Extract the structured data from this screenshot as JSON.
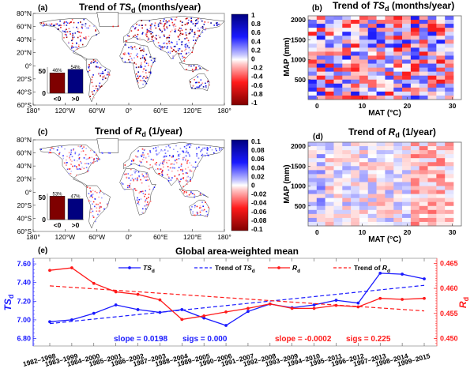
{
  "chart_data": [
    {
      "id": "a",
      "type": "heatmap",
      "panel_label": "(a)",
      "title": "Trend of TSd (months/year)",
      "title_main": "Trend of ",
      "title_var": "TS",
      "title_sub": "d",
      "title_unit": " (months/year)",
      "xticks": [
        "180°",
        "120°W",
        "60°W",
        "0°",
        "60°E",
        "120°E",
        "180°"
      ],
      "yticks": [
        "80°N",
        "60°N",
        "40°N",
        "20°N",
        "0°",
        "20°S",
        "40°S",
        "60°S"
      ],
      "colorbar": {
        "ticks": [
          "1",
          "0.8",
          "0.6",
          "0.4",
          "0.2",
          "0",
          "-0.2",
          "-0.4",
          "-0.6",
          "-0.8",
          "-1"
        ],
        "range": [
          -1,
          1
        ]
      },
      "inset": {
        "categories": [
          "<0",
          ">0"
        ],
        "values": [
          46,
          54
        ],
        "labels": [
          "46%",
          "54%"
        ],
        "ytick": "50",
        "ytick0": "0",
        "colors": [
          "#7f0000",
          "#00007f"
        ]
      }
    },
    {
      "id": "b",
      "type": "heatmap",
      "panel_label": "(b)",
      "title_main": "Trend of ",
      "title_var": "TS",
      "title_sub": "d",
      "title_unit": " (months/year)",
      "xlabel": "MAT (°C)",
      "ylabel": "MAP (mm)",
      "xticks": [
        "0",
        "10",
        "20",
        "30"
      ],
      "yticks": [
        "2000",
        "1500",
        "1000",
        "500"
      ],
      "xlim": [
        -2,
        32
      ],
      "ylim": [
        0,
        2100
      ],
      "color_range": [
        -1,
        1
      ]
    },
    {
      "id": "c",
      "type": "heatmap",
      "panel_label": "(c)",
      "title_main": "Trend of ",
      "title_var": "R",
      "title_sub": "d",
      "title_unit": " (1/year)",
      "xticks": [
        "180°",
        "120°W",
        "60°W",
        "0°",
        "60°E",
        "120°E",
        "180°"
      ],
      "yticks": [
        "80°N",
        "60°N",
        "40°N",
        "20°N",
        "0°",
        "20°S",
        "40°S",
        "60°S"
      ],
      "colorbar": {
        "ticks": [
          "0.1",
          "0.08",
          "0.06",
          "0.04",
          "0.02",
          "0",
          "-0.02",
          "-0.04",
          "-0.06",
          "-0.08",
          "-0.1"
        ],
        "range": [
          -0.1,
          0.1
        ]
      },
      "inset": {
        "categories": [
          "<0",
          ">0"
        ],
        "values": [
          53,
          47
        ],
        "labels": [
          "53%",
          "47%"
        ],
        "ytick": "50",
        "ytick0": "0",
        "colors": [
          "#7f0000",
          "#00007f"
        ]
      }
    },
    {
      "id": "d",
      "type": "heatmap",
      "panel_label": "(d)",
      "title_main": "Trend of ",
      "title_var": "R",
      "title_sub": "d",
      "title_unit": " (1/year)",
      "xlabel": "MAT (°C)",
      "ylabel": "MAP (mm)",
      "xticks": [
        "0",
        "10",
        "20",
        "30"
      ],
      "yticks": [
        "2000",
        "1500",
        "1000",
        "500"
      ],
      "xlim": [
        -2,
        32
      ],
      "ylim": [
        0,
        2100
      ],
      "color_range": [
        -0.1,
        0.1
      ]
    },
    {
      "id": "e",
      "type": "line",
      "panel_label": "(e)",
      "title": "Global area-weighted mean",
      "categories": [
        "1982–1998",
        "1983–1999",
        "1984–2000",
        "1985–2001",
        "1986–2002",
        "1987–2003",
        "1988–2004",
        "1989–2005",
        "1990–2006",
        "1991–2007",
        "1992–2008",
        "1993–2009",
        "1994–2010",
        "1995–2011",
        "1996–2012",
        "1997–2013",
        "1998–2014",
        "1999–2015"
      ],
      "y_left": {
        "label_var": "TS",
        "label_sub": "d",
        "ticks": [
          "7.60",
          "7.40",
          "7.20",
          "7.00",
          "6.80"
        ],
        "ylim": [
          6.72,
          7.66
        ],
        "color": "#1a1aff"
      },
      "y_right": {
        "label_var": "R",
        "label_sub": "d",
        "ticks": [
          "0.465",
          "0.460",
          "0.455",
          "0.450"
        ],
        "ylim": [
          0.4485,
          0.466
        ],
        "color": "#ff1a1a"
      },
      "series": [
        {
          "name": "TSd",
          "axis": "left",
          "style": "solid-marker",
          "color": "#1a1aff",
          "values": [
            6.98,
            7.0,
            7.07,
            7.16,
            7.11,
            7.08,
            7.11,
            7.02,
            6.94,
            7.09,
            7.17,
            7.13,
            7.16,
            7.21,
            7.18,
            7.5,
            7.49,
            7.44
          ]
        },
        {
          "name": "Trend of TSd",
          "axis": "left",
          "style": "dashed",
          "color": "#1a1aff",
          "start": 6.96,
          "end": 7.37
        },
        {
          "name": "Rd",
          "axis": "right",
          "style": "solid-marker",
          "color": "#ff1a1a",
          "values": [
            0.4636,
            0.4641,
            0.461,
            0.4593,
            0.4588,
            0.4577,
            0.4538,
            0.4545,
            0.4553,
            0.456,
            0.4569,
            0.456,
            0.456,
            0.4566,
            0.4563,
            0.458,
            0.4578,
            0.458
          ]
        },
        {
          "name": "Trend of Rd",
          "axis": "right",
          "style": "dashed",
          "color": "#ff1a1a",
          "start": 0.4605,
          "end": 0.4555
        }
      ],
      "legend": [
        {
          "var": "TS",
          "sub": "d",
          "prefix": "",
          "color": "#1a1aff",
          "style": "solid-marker"
        },
        {
          "var": "TS",
          "sub": "d",
          "prefix": "Trend of ",
          "color": "#1a1aff",
          "style": "dashed"
        },
        {
          "var": "R",
          "sub": "d",
          "prefix": "",
          "color": "#ff1a1a",
          "style": "solid-marker"
        },
        {
          "var": "R",
          "sub": "d",
          "prefix": "Trend of ",
          "color": "#ff1a1a",
          "style": "dashed"
        }
      ],
      "legend_position": "top",
      "annotations": [
        {
          "text": "slope = 0.0198",
          "color": "#1a1aff"
        },
        {
          "text": "sigs = 0.000",
          "color": "#1a1aff"
        },
        {
          "text": "slope = -0.0002",
          "color": "#ff1a1a"
        },
        {
          "text": "sigs = 0.225",
          "color": "#ff1a1a"
        }
      ]
    }
  ]
}
